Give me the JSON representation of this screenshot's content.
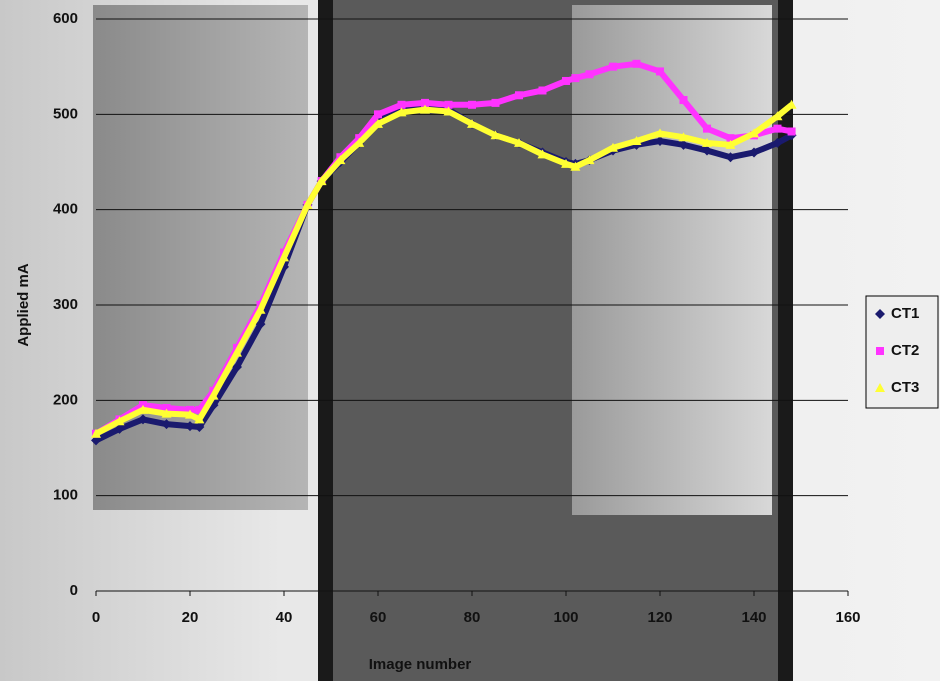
{
  "chart_data": {
    "type": "line",
    "x_label": "Image number",
    "y_label": "Applied mA",
    "x": [
      0,
      5,
      10,
      15,
      20,
      22,
      25,
      30,
      35,
      40,
      45,
      48,
      52,
      56,
      60,
      65,
      70,
      75,
      80,
      85,
      90,
      95,
      100,
      102,
      105,
      110,
      115,
      120,
      125,
      130,
      135,
      140,
      145,
      148
    ],
    "series": [
      {
        "name": "CT1",
        "color": "#1a1a6e",
        "marker": "diamond",
        "values": [
          158,
          170,
          180,
          175,
          173,
          172,
          195,
          235,
          280,
          340,
          405,
          430,
          450,
          470,
          495,
          505,
          507,
          505,
          490,
          478,
          470,
          460,
          450,
          448,
          452,
          462,
          468,
          472,
          468,
          462,
          455,
          460,
          470,
          478
        ]
      },
      {
        "name": "CT2",
        "color": "#ff33ff",
        "marker": "square",
        "values": [
          165,
          180,
          195,
          192,
          190,
          190,
          210,
          255,
          300,
          355,
          405,
          430,
          455,
          475,
          500,
          510,
          512,
          510,
          510,
          512,
          520,
          525,
          535,
          538,
          542,
          550,
          553,
          545,
          515,
          485,
          475,
          478,
          485,
          482
        ]
      },
      {
        "name": "CT3",
        "color": "#ffff33",
        "marker": "triangle",
        "values": [
          165,
          178,
          190,
          186,
          185,
          180,
          205,
          250,
          295,
          350,
          405,
          430,
          452,
          470,
          490,
          502,
          505,
          503,
          490,
          478,
          470,
          458,
          448,
          445,
          452,
          465,
          472,
          480,
          476,
          470,
          468,
          480,
          498,
          510
        ]
      }
    ],
    "xlim": [
      0,
      160
    ],
    "xticks": [
      0,
      20,
      40,
      60,
      80,
      100,
      120,
      140,
      160
    ],
    "ylim": [
      0,
      600
    ],
    "yticks": [
      0,
      100,
      200,
      300,
      400,
      500,
      600
    ],
    "grid": true,
    "legend": "right"
  }
}
